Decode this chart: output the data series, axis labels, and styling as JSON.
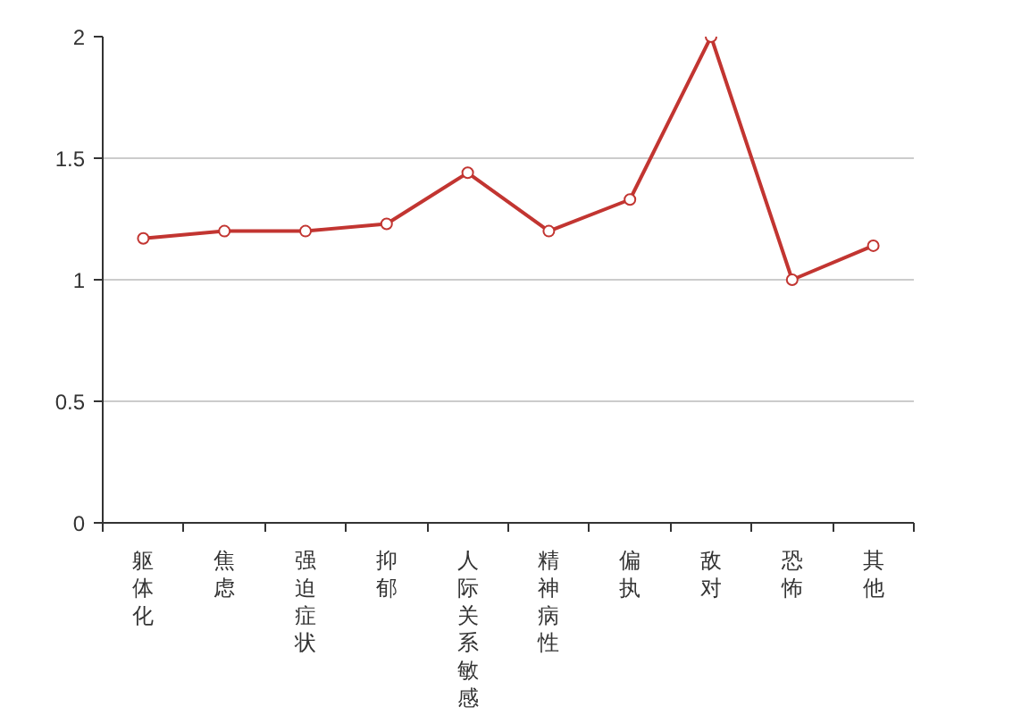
{
  "chart_data": {
    "type": "line",
    "categories": [
      "躯体化",
      "焦虑",
      "强迫症状",
      "抑郁",
      "人际关系敏感",
      "精神病性",
      "偏执",
      "敌对",
      "恐怖",
      "其他"
    ],
    "series": [
      {
        "color": "#c23531",
        "values": [
          1.17,
          1.2,
          1.2,
          1.23,
          1.44,
          1.2,
          1.33,
          2,
          1,
          1.14
        ]
      }
    ],
    "ylim": [
      0,
      2
    ],
    "yticks": [
      0,
      0.5,
      1,
      1.5,
      2
    ],
    "grid": "y",
    "marker": "circle",
    "line_style": "solid"
  }
}
